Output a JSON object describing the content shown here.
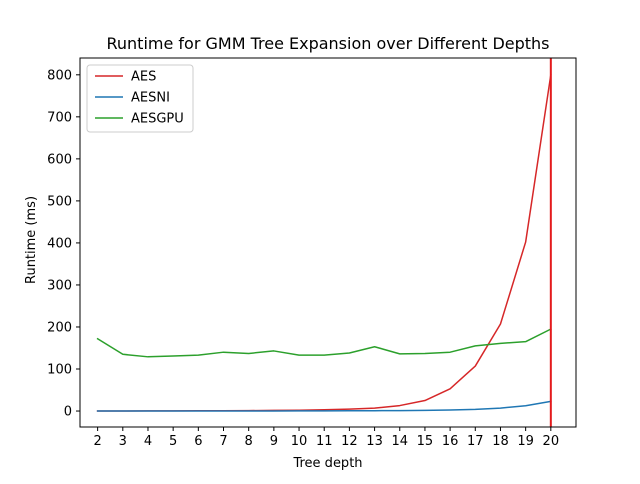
{
  "chart_data": {
    "type": "line",
    "title": "Runtime for GMM Tree Expansion over Different Depths",
    "xlabel": "Tree depth",
    "ylabel": "Runtime (ms)",
    "x": [
      2,
      3,
      4,
      5,
      6,
      7,
      8,
      9,
      10,
      11,
      12,
      13,
      14,
      15,
      16,
      17,
      18,
      19,
      20
    ],
    "xlim": [
      1.3,
      21.0
    ],
    "ylim": [
      -38,
      840
    ],
    "yticks": [
      0,
      100,
      200,
      300,
      400,
      500,
      600,
      700,
      800
    ],
    "grid": false,
    "legend_position": "top-left",
    "vline": {
      "x": 20,
      "color": "#e41a1c"
    },
    "series": [
      {
        "name": "AES",
        "color": "#d62728",
        "values": [
          0.1,
          0.2,
          0.3,
          0.4,
          0.6,
          0.8,
          1.0,
          1.5,
          2.0,
          3.0,
          4.5,
          7.0,
          13.0,
          25.0,
          53.0,
          107.0,
          207.0,
          402.0,
          800.0
        ]
      },
      {
        "name": "AESNI",
        "color": "#1f77b4",
        "values": [
          0.0,
          0.0,
          0.0,
          0.0,
          0.0,
          0.1,
          0.1,
          0.2,
          0.3,
          0.4,
          0.6,
          0.8,
          1.0,
          1.5,
          2.5,
          4.0,
          7.0,
          12.5,
          23.0
        ]
      },
      {
        "name": "AESGPU",
        "color": "#2ca02c",
        "values": [
          172,
          135,
          129,
          131,
          133,
          140,
          137,
          143,
          133,
          133,
          138,
          153,
          136,
          137,
          140,
          155,
          161,
          165,
          195
        ]
      }
    ]
  }
}
